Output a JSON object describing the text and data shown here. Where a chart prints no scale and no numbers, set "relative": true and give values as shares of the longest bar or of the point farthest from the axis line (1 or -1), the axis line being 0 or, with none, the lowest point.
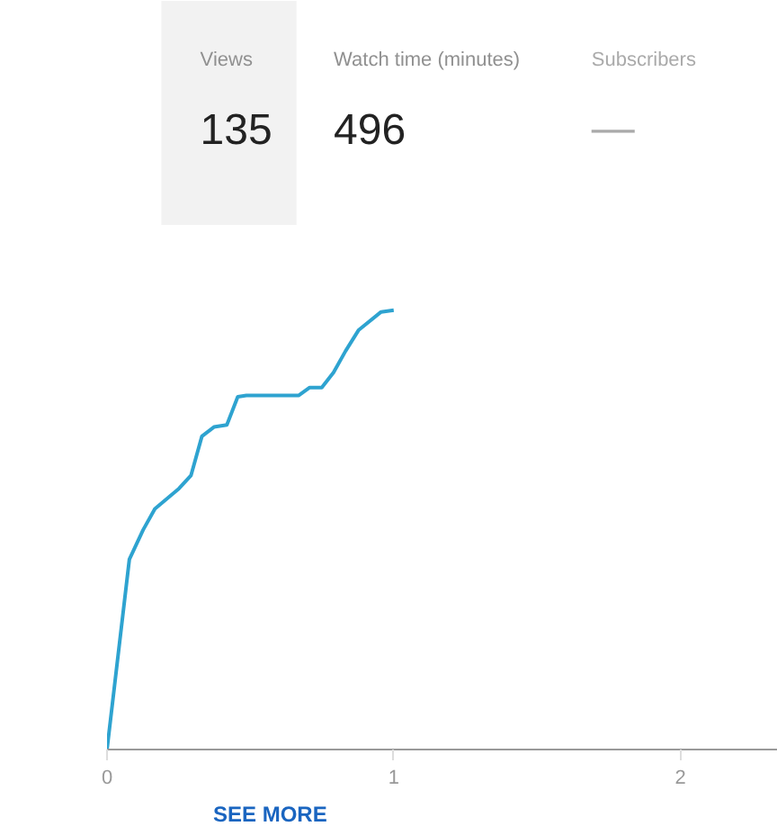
{
  "chart_data": [
    {
      "type": "other",
      "categories": [
        "Views",
        "Watch time (minutes)",
        "Subscribers"
      ],
      "value_labels": [
        "135",
        "496",
        "—"
      ]
    },
    {
      "type": "line",
      "relative": true,
      "x": [
        0,
        0.078,
        0.126,
        0.167,
        0.251,
        0.293,
        0.331,
        0.373,
        0.418,
        0.456,
        0.486,
        0.669,
        0.707,
        0.749,
        0.79,
        0.832,
        0.878,
        0.956,
        1.0
      ],
      "series": [
        {
          "color": "#2ea3d0",
          "values": [
            0,
            0.433,
            0.5,
            0.548,
            0.594,
            0.624,
            0.713,
            0.734,
            0.739,
            0.803,
            0.806,
            0.806,
            0.824,
            0.824,
            0.858,
            0.907,
            0.955,
            0.996,
            1.0
          ]
        }
      ],
      "xlim": [
        0,
        2.34
      ],
      "xticks": [
        0,
        1,
        2
      ],
      "grid": false,
      "marker": "none",
      "line_style": "solid",
      "annotations": [
        "SEE MORE"
      ]
    }
  ]
}
